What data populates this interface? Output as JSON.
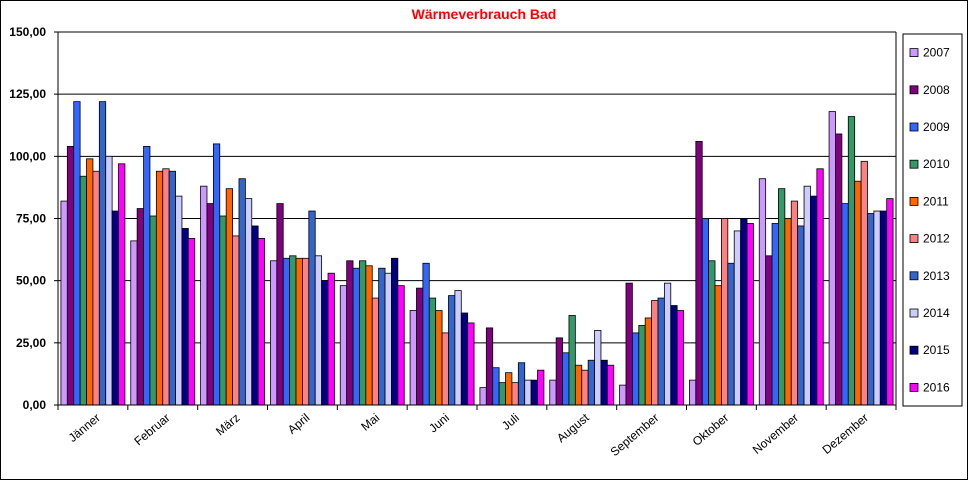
{
  "chart_data": {
    "type": "bar",
    "title": "Wärmeverbrauch Bad",
    "xlabel": "",
    "ylabel": "",
    "ylim": [
      0,
      150
    ],
    "yticks": [
      "0,00",
      "25,00",
      "50,00",
      "75,00",
      "100,00",
      "125,00",
      "150,00"
    ],
    "ytick_values": [
      0,
      25,
      50,
      75,
      100,
      125,
      150
    ],
    "grid": true,
    "legend_position": "right",
    "categories": [
      "Jänner",
      "Februar",
      "März",
      "April",
      "Mai",
      "Juni",
      "Juli",
      "August",
      "September",
      "Oktober",
      "November",
      "Dezember"
    ],
    "series": [
      {
        "name": "2007",
        "color": "#cc99ff",
        "values": [
          82,
          66,
          88,
          58,
          48,
          38,
          7,
          10,
          8,
          10,
          91,
          118
        ]
      },
      {
        "name": "2008",
        "color": "#800080",
        "values": [
          104,
          79,
          81,
          81,
          58,
          47,
          31,
          27,
          49,
          106,
          60,
          109
        ]
      },
      {
        "name": "2009",
        "color": "#3366ff",
        "values": [
          122,
          104,
          105,
          59,
          55,
          57,
          15,
          21,
          29,
          75,
          73,
          81
        ]
      },
      {
        "name": "2010",
        "color": "#339966",
        "values": [
          92,
          76,
          76,
          60,
          58,
          43,
          9,
          36,
          32,
          58,
          87,
          116
        ]
      },
      {
        "name": "2011",
        "color": "#ff6600",
        "values": [
          99,
          94,
          87,
          59,
          56,
          38,
          13,
          16,
          35,
          48,
          75,
          90
        ]
      },
      {
        "name": "2012",
        "color": "#ff8080",
        "values": [
          94,
          95,
          68,
          59,
          43,
          29,
          9,
          14,
          42,
          75,
          82,
          98
        ]
      },
      {
        "name": "2013",
        "color": "#3366cc",
        "values": [
          122,
          94,
          91,
          78,
          55,
          44,
          17,
          18,
          43,
          57,
          72,
          77
        ]
      },
      {
        "name": "2014",
        "color": "#ccccff",
        "values": [
          100,
          84,
          83,
          60,
          53,
          46,
          10,
          30,
          49,
          70,
          88,
          78
        ]
      },
      {
        "name": "2015",
        "color": "#000080",
        "values": [
          78,
          71,
          72,
          50,
          59,
          37,
          10,
          18,
          40,
          75,
          84,
          78
        ]
      },
      {
        "name": "2016",
        "color": "#ff00ff",
        "values": [
          97,
          67,
          67,
          53,
          48,
          33,
          14,
          16,
          38,
          73,
          95,
          83
        ]
      }
    ]
  }
}
